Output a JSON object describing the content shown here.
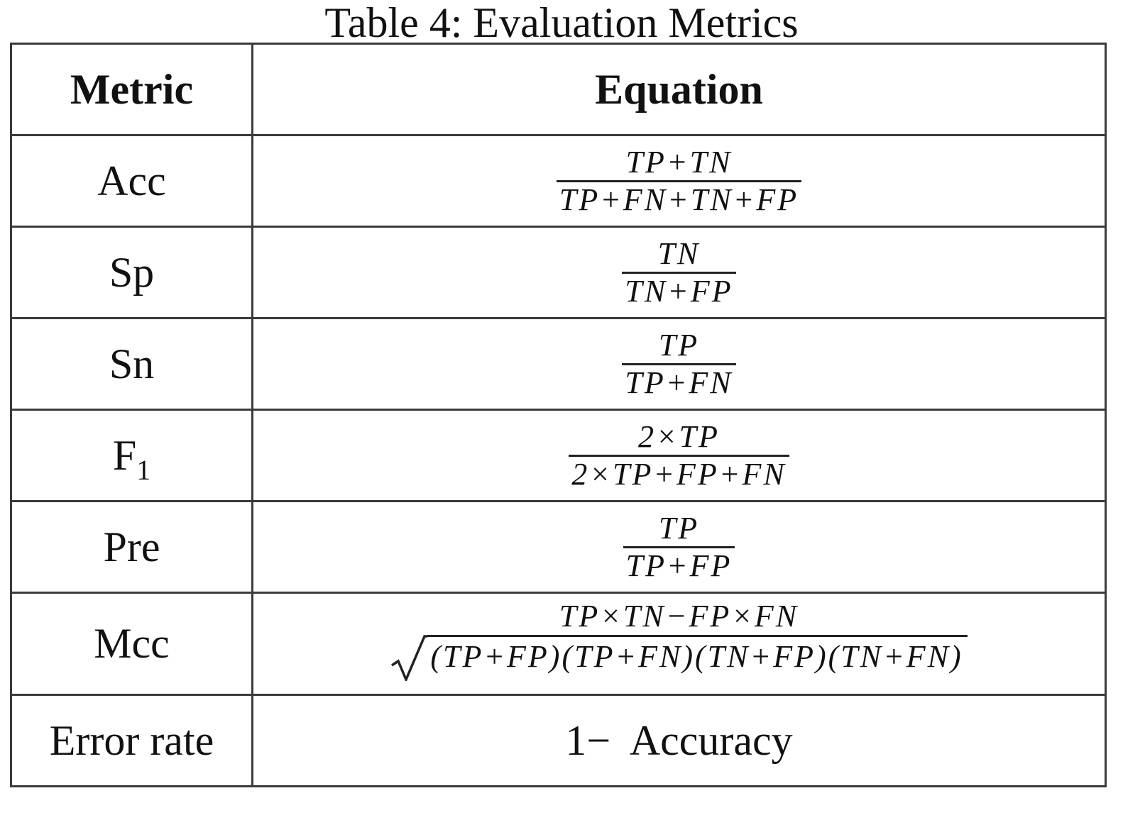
{
  "caption": "Table 4: Evaluation Metrics",
  "table": {
    "headers": [
      "Metric",
      "Equation"
    ],
    "rows": [
      {
        "metric": "Acc",
        "numerator": "TP+TN",
        "denominator": "TP+FN+TN+FP"
      },
      {
        "metric": "Sp",
        "numerator": "TN",
        "denominator": "TN+FP"
      },
      {
        "metric": "Sn",
        "numerator": "TP",
        "denominator": "TP+FN"
      },
      {
        "metric": "F",
        "metric_subscript": "1",
        "numerator": "2×TP",
        "denominator": "2×TP+FP+FN"
      },
      {
        "metric": "Pre",
        "numerator": "TP",
        "denominator": "TP+FP"
      },
      {
        "metric": "Mcc",
        "numerator": "TP×TN−FP×FN",
        "denominator_radicand": "(TP+FP)(TP+FN)(TN+FP)(TN+FN)"
      },
      {
        "metric": "Error rate",
        "equation_text": "1−  Accuracy"
      }
    ]
  }
}
